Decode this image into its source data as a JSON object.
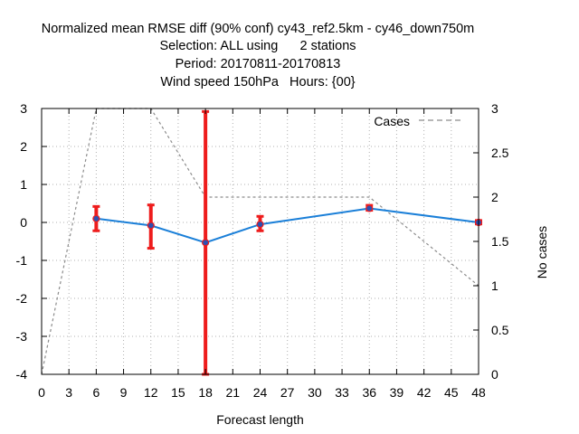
{
  "chart_data": {
    "type": "line",
    "title_lines": [
      "Normalized mean RMSE diff (90% conf) cy43_ref2.5km - cy46_down750m",
      "Selection: ALL using      2 stations",
      "Period: 20170811-20170813",
      "Wind speed 150hPa   Hours: {00}"
    ],
    "xlabel": "Forecast length",
    "ylabel": "",
    "y2label": "No cases",
    "xlim": [
      0,
      48
    ],
    "ylim": [
      -4,
      3
    ],
    "y2lim": [
      0,
      3
    ],
    "xticks": [
      "0",
      "3",
      "6",
      "9",
      "12",
      "15",
      "18",
      "21",
      "24",
      "27",
      "30",
      "33",
      "36",
      "39",
      "42",
      "45",
      "48"
    ],
    "yticks": [
      "-4",
      "-3",
      "-2",
      "-1",
      "0",
      "1",
      "2",
      "3"
    ],
    "y2ticks": [
      "0",
      "0.5",
      "1",
      "1.5",
      "2",
      "2.5",
      "3"
    ],
    "grid": true,
    "legend": {
      "position": "top-right",
      "entries": [
        "Cases"
      ]
    },
    "colors": {
      "diff": "#1a7fd8",
      "marker": "#2e4fb0",
      "errorbar": "#ee1c1c",
      "cases": "#8c8c8c",
      "grid": "#b0b0b0"
    },
    "series": [
      {
        "kind": "diff",
        "x": [
          6,
          12,
          18,
          24,
          36,
          48
        ],
        "y": [
          0.1,
          -0.08,
          -0.53,
          -0.05,
          0.37,
          0.0
        ],
        "ci_low": [
          -0.22,
          -0.68,
          -4.0,
          -0.22,
          0.32,
          -0.04
        ],
        "ci_high": [
          0.42,
          0.46,
          2.92,
          0.16,
          0.45,
          0.05
        ]
      },
      {
        "kind": "cases",
        "name": "Cases",
        "axis": "y2",
        "x": [
          0,
          6,
          12,
          18,
          36,
          48
        ],
        "y": [
          0,
          3,
          3,
          2,
          2,
          1
        ]
      }
    ]
  }
}
